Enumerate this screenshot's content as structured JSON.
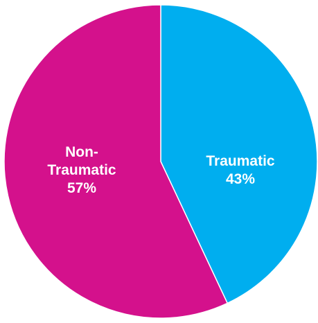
{
  "chart_data": {
    "type": "pie",
    "start_angle": "top, clockwise",
    "slices": [
      {
        "label_lines": [
          "Traumatic"
        ],
        "percent_text": "43%",
        "value": 43,
        "color": "#00aeef"
      },
      {
        "label_lines": [
          "Non-",
          "Traumatic"
        ],
        "percent_text": "57%",
        "value": 57,
        "color": "#d4118c"
      }
    ],
    "slice_border_color": "#ffffff"
  }
}
